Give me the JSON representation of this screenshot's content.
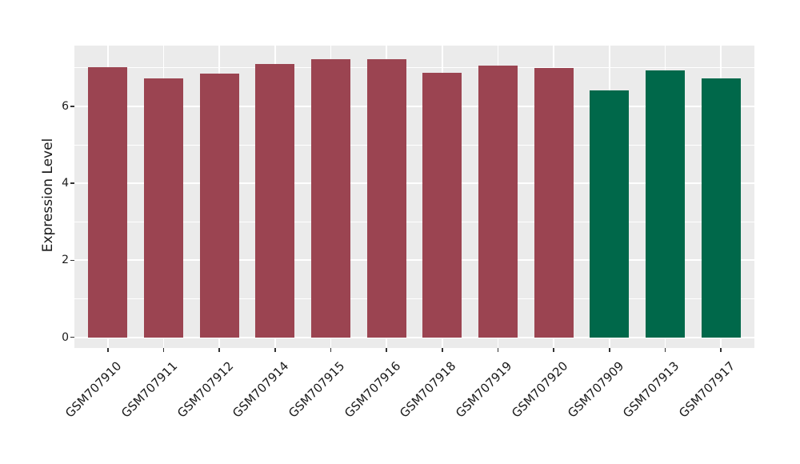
{
  "figure": {
    "background": "#FFFFFF",
    "panel_bg": "#EBEBEB",
    "grid_color": "#FFFFFF",
    "tick_mark_color": "#333333",
    "text_color": "#1A1A1A"
  },
  "chart_data": {
    "type": "bar",
    "title": "",
    "xlabel": "",
    "ylabel": "Expression Level",
    "categories": [
      "GSM707910",
      "GSM707911",
      "GSM707912",
      "GSM707914",
      "GSM707915",
      "GSM707916",
      "GSM707918",
      "GSM707919",
      "GSM707920",
      "GSM707909",
      "GSM707913",
      "GSM707917"
    ],
    "values": [
      7.02,
      6.72,
      6.85,
      7.1,
      7.22,
      7.22,
      6.87,
      7.06,
      7.0,
      6.41,
      6.93,
      6.72
    ],
    "bar_colors": [
      "#9B4451",
      "#9B4451",
      "#9B4451",
      "#9B4451",
      "#9B4451",
      "#9B4451",
      "#9B4451",
      "#9B4451",
      "#9B4451",
      "#00684A",
      "#00684A",
      "#00684A"
    ],
    "ylim": [
      -0.28,
      7.58
    ],
    "yticks": [
      0,
      2,
      4,
      6
    ],
    "yticks_minor": [
      1,
      3,
      5,
      7
    ],
    "grid": true,
    "legend_position": "none",
    "panel_bg": "#EBEBEB",
    "grid_color": "#FFFFFF"
  }
}
